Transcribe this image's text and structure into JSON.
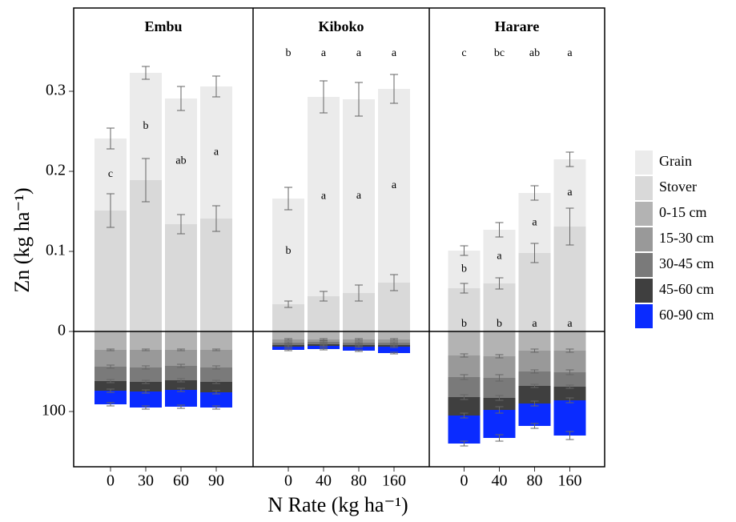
{
  "chart_data": {
    "type": "bar",
    "stacked": true,
    "ylabel": "Zn (kg ha⁻¹)",
    "xlabel": "N Rate (kg ha⁻¹)",
    "ylim": [
      -0.169,
      0.404
    ],
    "yticks": [
      {
        "value": -0.1,
        "label": "100"
      },
      0,
      0.1,
      0.2,
      0.3
    ],
    "legend": "right",
    "series": [
      {
        "name": "Grain",
        "color": "#ebebeb"
      },
      {
        "name": "Stover",
        "color": "#d9d9d9"
      },
      {
        "name": "0-15 cm",
        "color": "#b3b3b3"
      },
      {
        "name": "15-30 cm",
        "color": "#999999"
      },
      {
        "name": "30-45 cm",
        "color": "#7a7a7a"
      },
      {
        "name": "45-60 cm",
        "color": "#3f3f3f"
      },
      {
        "name": "60-90 cm",
        "color": "#0a2bff"
      }
    ],
    "panels": [
      {
        "title": "Embu",
        "categories": [
          "0",
          "30",
          "60",
          "90"
        ],
        "values": [
          [
            0.09,
            0.134,
            0.157,
            0.165
          ],
          [
            0.151,
            0.189,
            0.134,
            0.141
          ],
          [
            -0.023,
            -0.023,
            -0.023,
            -0.023
          ],
          [
            -0.021,
            -0.022,
            -0.02,
            -0.022
          ],
          [
            -0.018,
            -0.018,
            -0.018,
            -0.018
          ],
          [
            -0.012,
            -0.012,
            -0.012,
            -0.013
          ],
          [
            -0.017,
            -0.02,
            -0.021,
            -0.019
          ]
        ],
        "errors": [
          [
            0.013,
            0.008,
            0.015,
            0.013
          ],
          [
            0.021,
            0.027,
            0.012,
            0.016
          ],
          [
            0.001,
            0.001,
            0.001,
            0.001
          ],
          [
            0.002,
            0.002,
            0.002,
            0.002
          ],
          [
            0.002,
            0.002,
            0.002,
            0.002
          ],
          [
            0.002,
            0.002,
            0.002,
            0.002
          ],
          [
            0.002,
            0.002,
            0.002,
            0.002
          ]
        ],
        "letters": {
          "grain": [
            "c",
            "b",
            "ab",
            "a"
          ]
        }
      },
      {
        "title": "Kiboko",
        "categories": [
          "0",
          "40",
          "80",
          "160"
        ],
        "values": [
          [
            0.132,
            0.249,
            0.242,
            0.242
          ],
          [
            0.034,
            0.044,
            0.048,
            0.061
          ],
          [
            -0.01,
            -0.01,
            -0.01,
            -0.01
          ],
          [
            -0.004,
            -0.003,
            -0.004,
            -0.004
          ],
          [
            -0.003,
            -0.003,
            -0.003,
            -0.003
          ],
          [
            -0.002,
            -0.002,
            -0.002,
            -0.002
          ],
          [
            -0.004,
            -0.004,
            -0.005,
            -0.008
          ]
        ],
        "errors": [
          [
            0.014,
            0.02,
            0.021,
            0.018
          ],
          [
            0.004,
            0.006,
            0.01,
            0.01
          ],
          [
            0.001,
            0.001,
            0.001,
            0.001
          ],
          [
            0.001,
            0.001,
            0.001,
            0.001
          ],
          [
            0.001,
            0.001,
            0.001,
            0.001
          ],
          [
            0.001,
            0.001,
            0.001,
            0.001
          ],
          [
            0.001,
            0.001,
            0.001,
            0.001
          ]
        ],
        "letters": {
          "total": [
            "b",
            "a",
            "a",
            "a"
          ],
          "grain": [
            "b",
            "a",
            "a",
            "a"
          ]
        }
      },
      {
        "title": "Harare",
        "categories": [
          "0",
          "40",
          "80",
          "160"
        ],
        "values": [
          [
            0.047,
            0.067,
            0.075,
            0.084
          ],
          [
            0.054,
            0.06,
            0.098,
            0.131
          ],
          [
            -0.03,
            -0.031,
            -0.024,
            -0.024
          ],
          [
            -0.027,
            -0.027,
            -0.026,
            -0.027
          ],
          [
            -0.025,
            -0.025,
            -0.018,
            -0.018
          ],
          [
            -0.023,
            -0.015,
            -0.022,
            -0.017
          ],
          [
            -0.035,
            -0.035,
            -0.028,
            -0.044
          ]
        ],
        "errors": [
          [
            0.006,
            0.009,
            0.009,
            0.009
          ],
          [
            0.006,
            0.007,
            0.012,
            0.023
          ],
          [
            0.002,
            0.002,
            0.002,
            0.002
          ],
          [
            0.003,
            0.004,
            0.002,
            0.003
          ],
          [
            0.003,
            0.003,
            0.002,
            0.002
          ],
          [
            0.003,
            0.004,
            0.003,
            0.003
          ],
          [
            0.003,
            0.004,
            0.003,
            0.005
          ]
        ],
        "letters": {
          "total": [
            "c",
            "bc",
            "ab",
            "a"
          ],
          "grain": [
            "b",
            "a",
            "a",
            "a"
          ],
          "stover": [
            "b",
            "b",
            "a",
            "a"
          ]
        }
      }
    ]
  }
}
